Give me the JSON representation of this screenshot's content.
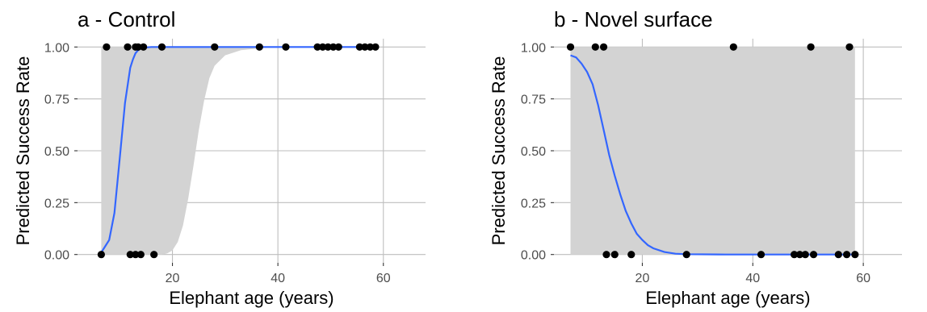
{
  "chart_data": [
    {
      "type": "line",
      "title": "a - Control",
      "xlabel": "Elephant age (years)",
      "ylabel": "Predicted Success Rate",
      "xlim": [
        2,
        68
      ],
      "ylim": [
        -0.04,
        1.04
      ],
      "x_ticks": [
        20,
        40,
        60
      ],
      "y_ticks": [
        0.0,
        0.25,
        0.5,
        0.75,
        1.0
      ],
      "y_tick_labels": [
        "0.00",
        "0.25",
        "0.50",
        "0.75",
        "1.00"
      ],
      "grid": true,
      "colors": {
        "line": "#3366ff",
        "ribbon": "#d3d3d3",
        "points": "#000000",
        "grid": "#bebebe",
        "axis_text": "#4d4d4d"
      },
      "series": [
        {
          "kind": "fitted_line",
          "x": [
            6.5,
            7,
            8,
            9,
            10,
            11,
            12,
            12.5,
            13,
            13.5,
            14,
            15,
            16,
            18,
            20,
            25,
            30,
            40,
            50,
            58.5
          ],
          "y": [
            0.01,
            0.03,
            0.07,
            0.2,
            0.46,
            0.73,
            0.9,
            0.94,
            0.97,
            0.985,
            0.993,
            0.998,
            1.0,
            1.0,
            1.0,
            1.0,
            1.0,
            1.0,
            1.0,
            1.0
          ]
        },
        {
          "kind": "confidence_band",
          "x": [
            6.5,
            14,
            18,
            19,
            20,
            21,
            22,
            23,
            24,
            25,
            26,
            27,
            28,
            30,
            33,
            37,
            40,
            50,
            58.5
          ],
          "lower": [
            0,
            0,
            0,
            0.005,
            0.02,
            0.06,
            0.14,
            0.27,
            0.43,
            0.6,
            0.74,
            0.85,
            0.91,
            0.96,
            0.985,
            0.995,
            1.0,
            1.0,
            1.0
          ],
          "upper": [
            1,
            1,
            1,
            1,
            1,
            1,
            1,
            1,
            1,
            1,
            1,
            1,
            1,
            1,
            1,
            1,
            1,
            1,
            1
          ]
        },
        {
          "kind": "observations",
          "points": [
            {
              "x": 6.5,
              "y": 0
            },
            {
              "x": 7.5,
              "y": 1
            },
            {
              "x": 11.5,
              "y": 1
            },
            {
              "x": 13.0,
              "y": 1
            },
            {
              "x": 13.5,
              "y": 1
            },
            {
              "x": 14.5,
              "y": 1
            },
            {
              "x": 18.0,
              "y": 1
            },
            {
              "x": 28.0,
              "y": 1
            },
            {
              "x": 36.5,
              "y": 1
            },
            {
              "x": 41.5,
              "y": 1
            },
            {
              "x": 47.5,
              "y": 1
            },
            {
              "x": 48.5,
              "y": 1
            },
            {
              "x": 49.5,
              "y": 1
            },
            {
              "x": 50.5,
              "y": 1
            },
            {
              "x": 51.5,
              "y": 1
            },
            {
              "x": 55.5,
              "y": 1
            },
            {
              "x": 56.5,
              "y": 1
            },
            {
              "x": 57.5,
              "y": 1
            },
            {
              "x": 58.5,
              "y": 1
            },
            {
              "x": 12.0,
              "y": 0
            },
            {
              "x": 13.0,
              "y": 0
            },
            {
              "x": 14.0,
              "y": 0
            },
            {
              "x": 16.5,
              "y": 0
            }
          ]
        }
      ]
    },
    {
      "type": "line",
      "title": "b - Novel surface",
      "xlabel": "Elephant age (years)",
      "ylabel": "Predicted Success Rate",
      "xlim": [
        4,
        67
      ],
      "ylim": [
        -0.04,
        1.04
      ],
      "x_ticks": [
        20,
        40,
        60
      ],
      "y_ticks": [
        0.0,
        0.25,
        0.5,
        0.75,
        1.0
      ],
      "y_tick_labels": [
        "0.00",
        "0.25",
        "0.50",
        "0.75",
        "1.00"
      ],
      "grid": true,
      "colors": {
        "line": "#3366ff",
        "ribbon": "#d3d3d3",
        "points": "#000000",
        "grid": "#bebebe",
        "axis_text": "#4d4d4d"
      },
      "series": [
        {
          "kind": "fitted_line",
          "x": [
            7,
            8,
            9,
            10,
            11,
            12,
            13,
            14,
            15,
            16,
            17,
            18,
            19,
            20,
            21,
            22,
            24,
            26,
            28,
            35,
            45,
            58.5
          ],
          "y": [
            0.96,
            0.95,
            0.92,
            0.88,
            0.82,
            0.72,
            0.6,
            0.48,
            0.38,
            0.29,
            0.21,
            0.15,
            0.1,
            0.07,
            0.045,
            0.03,
            0.012,
            0.004,
            0.0015,
            0.0,
            0.0,
            0.0
          ]
        },
        {
          "kind": "confidence_band",
          "x": [
            7,
            58.5
          ],
          "lower": [
            0,
            0
          ],
          "upper": [
            1,
            1
          ]
        },
        {
          "kind": "observations",
          "points": [
            {
              "x": 7.0,
              "y": 1
            },
            {
              "x": 11.5,
              "y": 1
            },
            {
              "x": 13.0,
              "y": 1
            },
            {
              "x": 36.5,
              "y": 1
            },
            {
              "x": 50.5,
              "y": 1
            },
            {
              "x": 57.5,
              "y": 1
            },
            {
              "x": 13.5,
              "y": 0
            },
            {
              "x": 15.0,
              "y": 0
            },
            {
              "x": 18.0,
              "y": 0
            },
            {
              "x": 28.0,
              "y": 0
            },
            {
              "x": 41.5,
              "y": 0
            },
            {
              "x": 47.5,
              "y": 0
            },
            {
              "x": 48.5,
              "y": 0
            },
            {
              "x": 49.5,
              "y": 0
            },
            {
              "x": 51.0,
              "y": 0
            },
            {
              "x": 55.5,
              "y": 0
            },
            {
              "x": 57.0,
              "y": 0
            },
            {
              "x": 58.5,
              "y": 0
            }
          ]
        }
      ]
    }
  ]
}
